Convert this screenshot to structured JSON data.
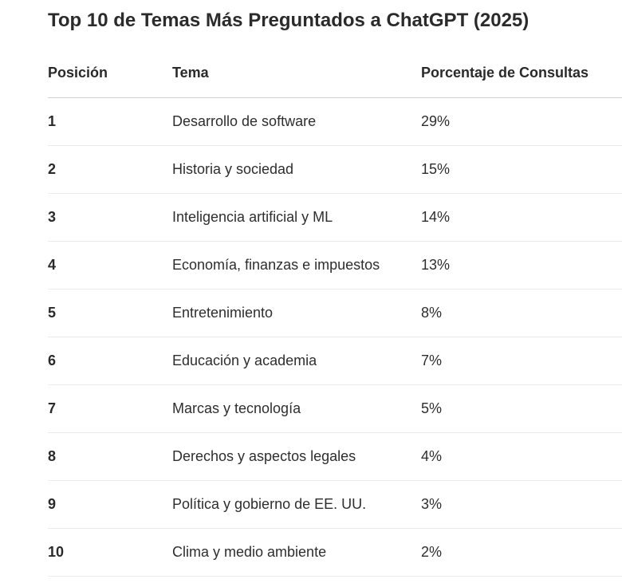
{
  "title": "Top 10 de Temas Más Preguntados a ChatGPT (2025)",
  "table": {
    "headers": [
      "Posición",
      "Tema",
      "Porcentaje de Consultas"
    ],
    "rows": [
      {
        "pos": "1",
        "tema": "Desarrollo de software",
        "pct": "29%"
      },
      {
        "pos": "2",
        "tema": "Historia y sociedad",
        "pct": "15%"
      },
      {
        "pos": "3",
        "tema": "Inteligencia artificial y ML",
        "pct": "14%"
      },
      {
        "pos": "4",
        "tema": "Economía, finanzas e impuestos",
        "pct": "13%"
      },
      {
        "pos": "5",
        "tema": "Entretenimiento",
        "pct": "8%"
      },
      {
        "pos": "6",
        "tema": "Educación y academia",
        "pct": "7%"
      },
      {
        "pos": "7",
        "tema": "Marcas y tecnología",
        "pct": "5%"
      },
      {
        "pos": "8",
        "tema": "Derechos y aspectos legales",
        "pct": "4%"
      },
      {
        "pos": "9",
        "tema": "Política y gobierno de EE. UU.",
        "pct": "3%"
      },
      {
        "pos": "10",
        "tema": "Clima y medio ambiente",
        "pct": "2%"
      }
    ]
  }
}
